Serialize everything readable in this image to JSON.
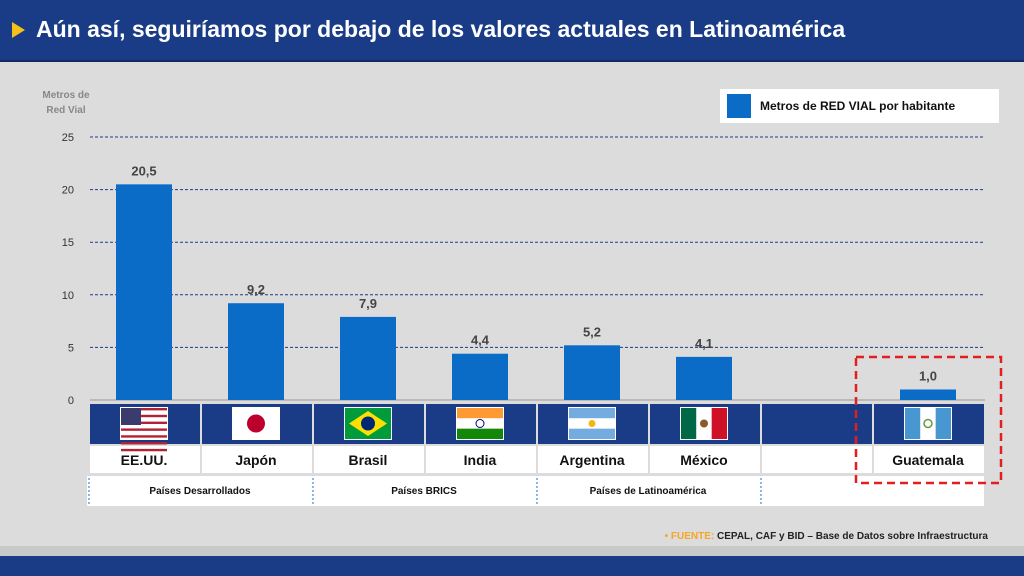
{
  "header": {
    "title": "Aún así, seguiríamos por debajo de los valores actuales en Latinoamérica"
  },
  "colors": {
    "bar": "#0b6cc8",
    "header": "#1a3c86",
    "highlight_box": "#e02020",
    "gridline": "#1a3c86"
  },
  "chart_data": {
    "type": "bar",
    "ylabel": "Metros de Red Vial",
    "ylim": [
      0,
      25
    ],
    "yticks": [
      0,
      5,
      10,
      15,
      20,
      25
    ],
    "grid": true,
    "legend_position": "top-right",
    "categories": [
      "EE.UU.",
      "Japón",
      "Brasil",
      "India",
      "Argentina",
      "México",
      "Guatemala"
    ],
    "series": [
      {
        "name": "Metros de RED VIAL por habitante",
        "values": [
          20.5,
          9.2,
          7.9,
          4.4,
          5.2,
          4.1,
          1.0
        ]
      }
    ],
    "data_labels": [
      "20,5",
      "9,2",
      "7,9",
      "4,4",
      "5,2",
      "4,1",
      "1,0"
    ],
    "flags": [
      "usa-flag-icon",
      "japan-flag-icon",
      "brazil-flag-icon",
      "india-flag-icon",
      "argentina-flag-icon",
      "mexico-flag-icon",
      "guatemala-flag-icon"
    ],
    "groups": [
      {
        "label": "Países Desarrollados",
        "members": [
          "EE.UU.",
          "Japón"
        ]
      },
      {
        "label": "Países BRICS",
        "members": [
          "Brasil",
          "India"
        ]
      },
      {
        "label": "Países de Latinoamérica",
        "members": [
          "Argentina",
          "México"
        ]
      }
    ],
    "highlighted": "Guatemala"
  },
  "source": {
    "label": "FUENTE:",
    "text": "CEPAL, CAF y BID – Base de Datos sobre Infraestructura"
  }
}
